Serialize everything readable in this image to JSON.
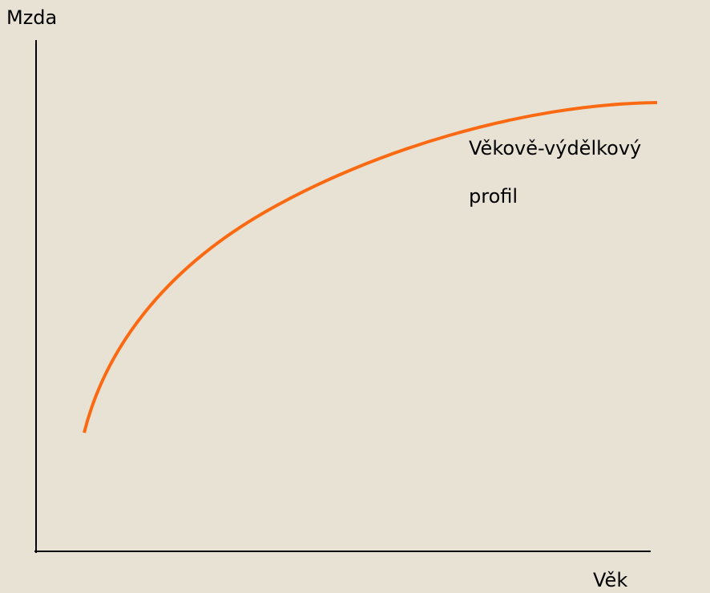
{
  "diagram": {
    "y_axis_label": "Mzda",
    "x_axis_label": "Věk",
    "curve_label_lines": [
      "Věkově-výdělkový",
      "profil"
    ]
  }
}
